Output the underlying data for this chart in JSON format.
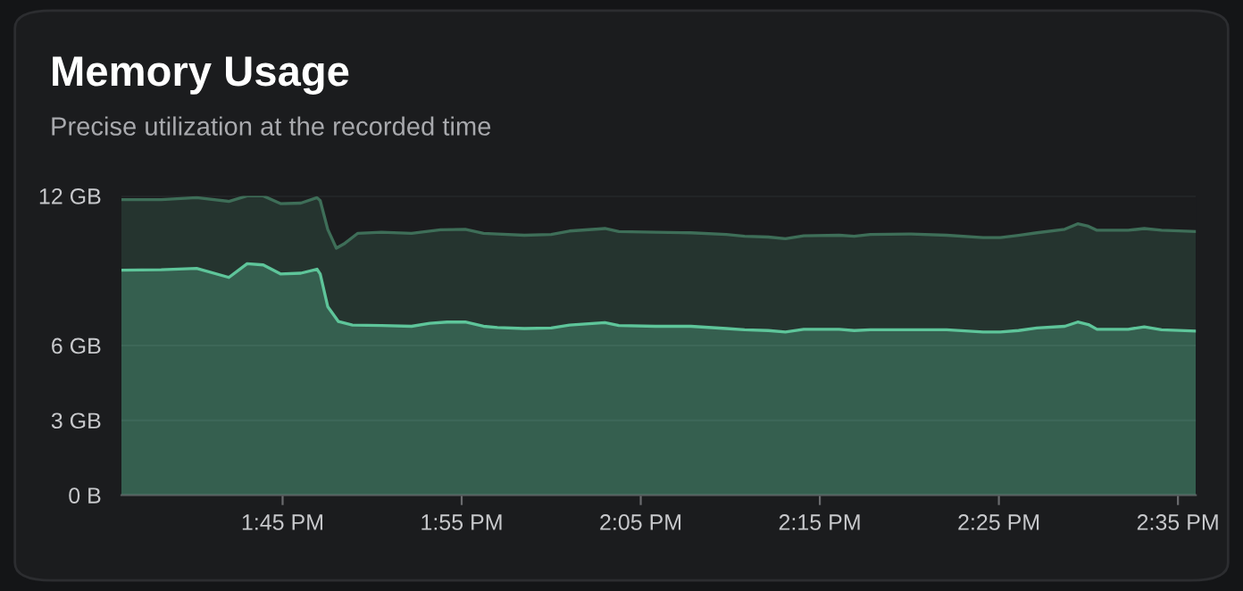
{
  "chart_data": {
    "type": "area",
    "title": "Memory Usage",
    "subtitle": "Precise utilization at the recorded time",
    "xlim": [
      13.6,
      14.6
    ],
    "xticks": [
      {
        "value": 13.75,
        "label": "1:45 PM"
      },
      {
        "value": 13.916667,
        "label": "1:55 PM"
      },
      {
        "value": 14.083333,
        "label": "2:05 PM"
      },
      {
        "value": 14.25,
        "label": "2:15 PM"
      },
      {
        "value": 14.416667,
        "label": "2:25 PM"
      },
      {
        "value": 14.583333,
        "label": "2:35 PM"
      }
    ],
    "ylim": [
      0,
      12
    ],
    "yticks": [
      {
        "value": 0,
        "label": "0 B"
      },
      {
        "value": 3,
        "label": "3 GB"
      },
      {
        "value": 6,
        "label": "6 GB"
      },
      {
        "value": 12,
        "label": "12 GB"
      }
    ],
    "grid": "y",
    "legend": false,
    "series": [
      {
        "color": "#3e6e58",
        "x": [
          13.6,
          13.637,
          13.67,
          13.7,
          13.717,
          13.732,
          13.748,
          13.767,
          13.782,
          13.785,
          13.792,
          13.8,
          13.807,
          13.82,
          13.842,
          13.87,
          13.897,
          13.92,
          13.937,
          13.95,
          13.975,
          14.0,
          14.017,
          14.05,
          14.063,
          14.097,
          14.13,
          14.163,
          14.18,
          14.202,
          14.218,
          14.235,
          14.268,
          14.282,
          14.297,
          14.335,
          14.368,
          14.402,
          14.418,
          14.435,
          14.452,
          14.478,
          14.49,
          14.5,
          14.508,
          14.517,
          14.537,
          14.552,
          14.568,
          14.6
        ],
        "values": [
          11.85,
          11.85,
          11.93,
          11.78,
          12.0,
          12.0,
          11.69,
          11.71,
          11.93,
          11.81,
          10.66,
          9.9,
          10.07,
          10.5,
          10.54,
          10.5,
          10.64,
          10.66,
          10.5,
          10.47,
          10.42,
          10.45,
          10.59,
          10.69,
          10.57,
          10.54,
          10.52,
          10.45,
          10.38,
          10.35,
          10.28,
          10.4,
          10.42,
          10.38,
          10.45,
          10.47,
          10.42,
          10.33,
          10.33,
          10.42,
          10.52,
          10.66,
          10.88,
          10.78,
          10.62,
          10.62,
          10.62,
          10.69,
          10.62,
          10.57
        ]
      },
      {
        "color": "#5ec59a",
        "x": [
          13.6,
          13.637,
          13.67,
          13.7,
          13.717,
          13.732,
          13.748,
          13.767,
          13.782,
          13.785,
          13.792,
          13.802,
          13.815,
          13.842,
          13.87,
          13.887,
          13.903,
          13.92,
          13.937,
          13.95,
          13.975,
          14.0,
          14.017,
          14.05,
          14.063,
          14.097,
          14.13,
          14.163,
          14.18,
          14.202,
          14.218,
          14.235,
          14.268,
          14.282,
          14.297,
          14.335,
          14.368,
          14.402,
          14.418,
          14.435,
          14.452,
          14.478,
          14.49,
          14.5,
          14.508,
          14.517,
          14.537,
          14.552,
          14.568,
          14.6
        ],
        "values": [
          9.02,
          9.04,
          9.09,
          8.73,
          9.28,
          9.23,
          8.87,
          8.9,
          9.06,
          8.87,
          7.56,
          6.96,
          6.82,
          6.8,
          6.77,
          6.89,
          6.94,
          6.94,
          6.77,
          6.72,
          6.68,
          6.7,
          6.82,
          6.92,
          6.8,
          6.77,
          6.77,
          6.68,
          6.63,
          6.6,
          6.54,
          6.65,
          6.65,
          6.6,
          6.63,
          6.63,
          6.63,
          6.54,
          6.54,
          6.6,
          6.7,
          6.77,
          6.94,
          6.84,
          6.65,
          6.65,
          6.65,
          6.75,
          6.63,
          6.58
        ]
      }
    ]
  }
}
